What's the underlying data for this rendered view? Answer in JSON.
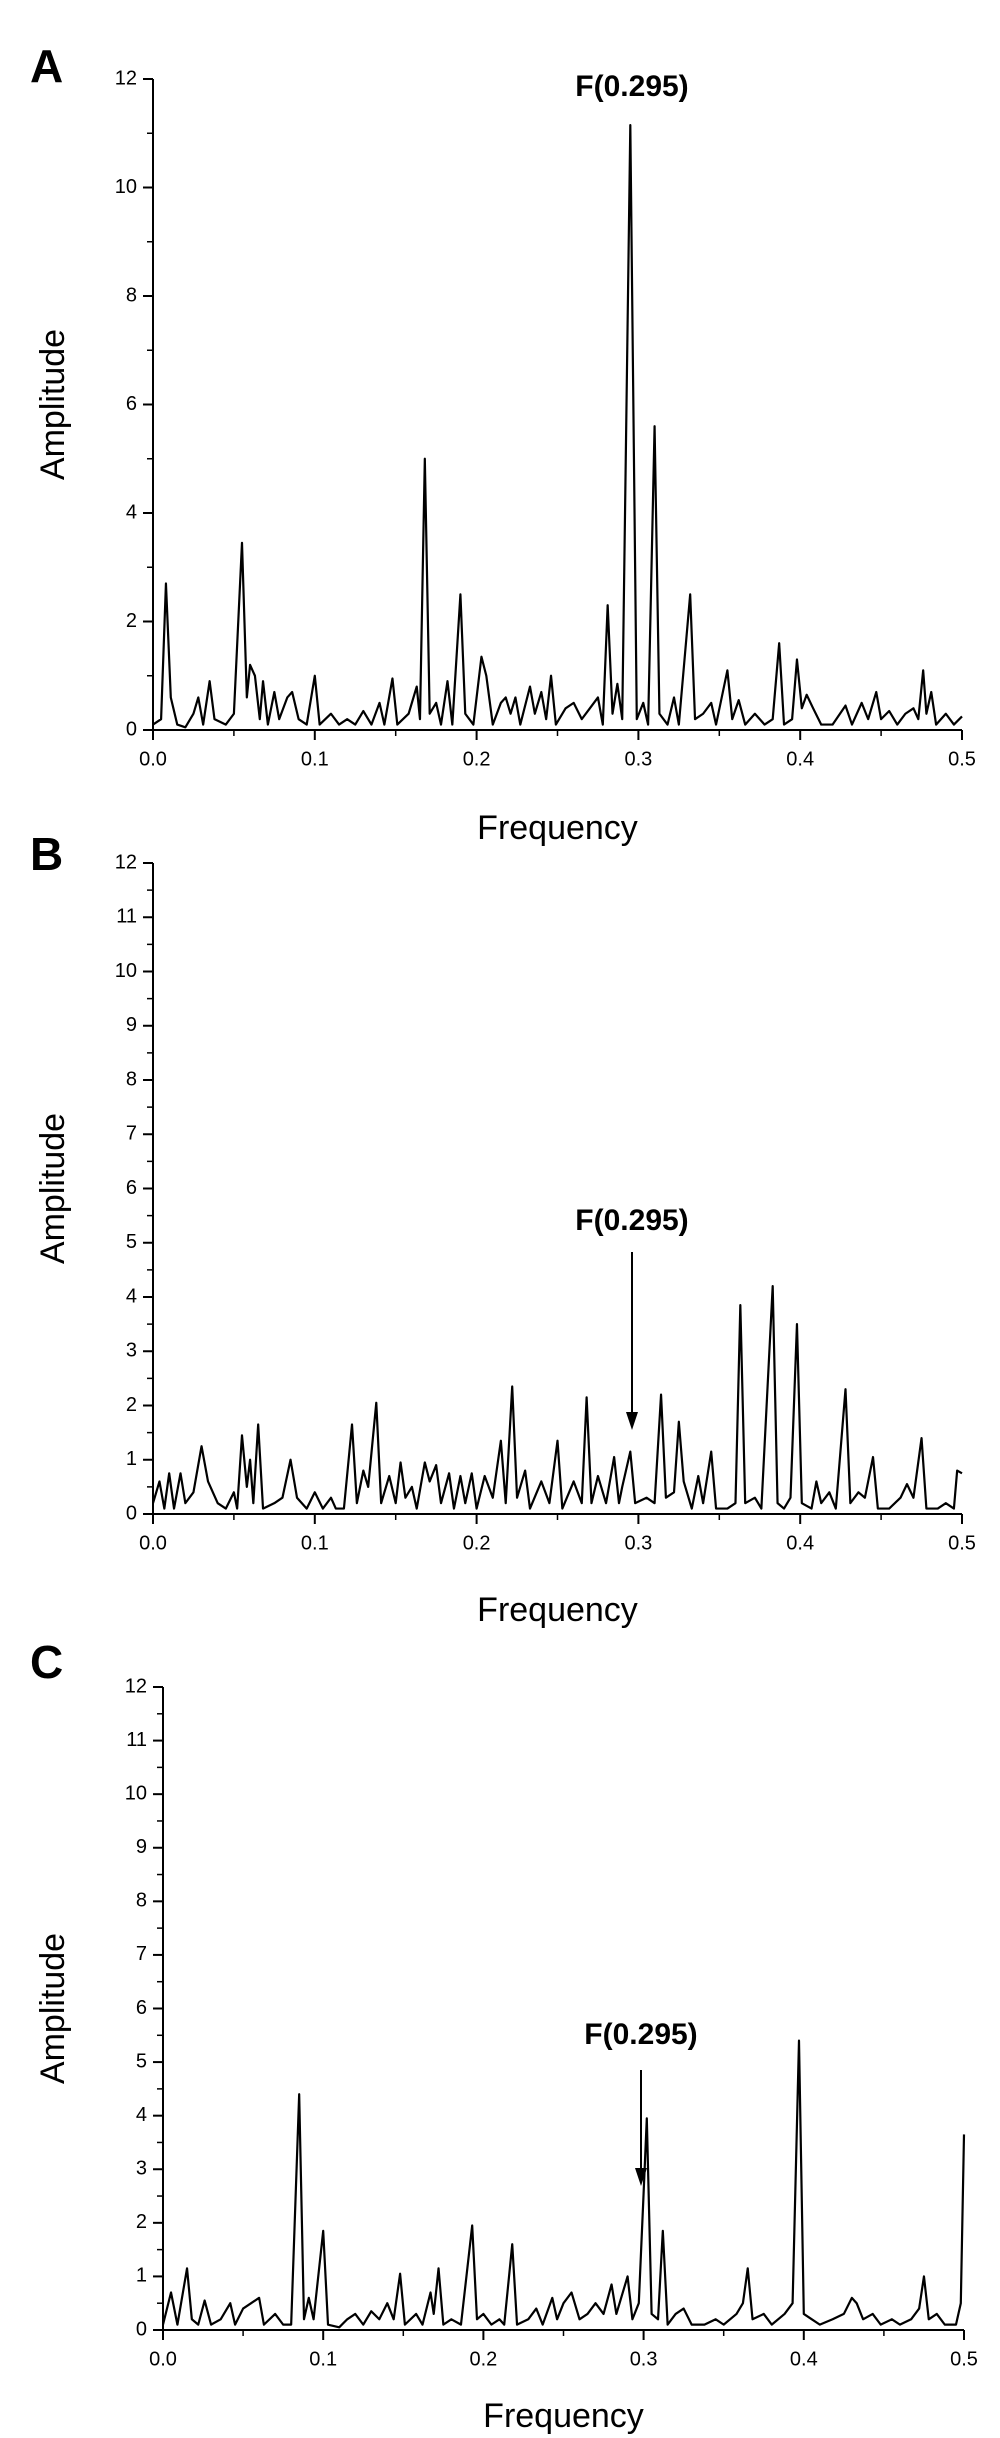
{
  "chart_data": [
    {
      "type": "line",
      "panel_label": "A",
      "annotation": "F(0.295)",
      "x_label": "Frequency",
      "y_label": "Amplitude",
      "color": "#000000",
      "xlim": [
        0,
        0.5
      ],
      "xticks": [
        {
          "value": 0,
          "label": "0.0"
        },
        0.1,
        0.2,
        0.3,
        0.4,
        0.5
      ],
      "ylim": [
        0,
        12
      ],
      "yticks": [
        0,
        2,
        4,
        6,
        8,
        10,
        12
      ],
      "x": [
        0,
        0.005,
        0.008,
        0.011,
        0.015,
        0.02,
        0.025,
        0.028,
        0.031,
        0.035,
        0.038,
        0.045,
        0.05,
        0.055,
        0.058,
        0.06,
        0.063,
        0.066,
        0.068,
        0.071,
        0.075,
        0.078,
        0.083,
        0.086,
        0.09,
        0.095,
        0.1,
        0.103,
        0.11,
        0.115,
        0.12,
        0.125,
        0.13,
        0.135,
        0.14,
        0.143,
        0.148,
        0.151,
        0.158,
        0.163,
        0.165,
        0.168,
        0.171,
        0.175,
        0.178,
        0.182,
        0.185,
        0.19,
        0.193,
        0.198,
        0.203,
        0.206,
        0.21,
        0.215,
        0.218,
        0.221,
        0.224,
        0.227,
        0.233,
        0.236,
        0.24,
        0.243,
        0.246,
        0.249,
        0.255,
        0.26,
        0.265,
        0.27,
        0.275,
        0.278,
        0.281,
        0.284,
        0.287,
        0.29,
        0.295,
        0.299,
        0.303,
        0.306,
        0.31,
        0.313,
        0.318,
        0.322,
        0.325,
        0.332,
        0.335,
        0.34,
        0.345,
        0.348,
        0.355,
        0.358,
        0.362,
        0.366,
        0.372,
        0.378,
        0.383,
        0.387,
        0.39,
        0.395,
        0.398,
        0.401,
        0.404,
        0.408,
        0.413,
        0.42,
        0.428,
        0.432,
        0.438,
        0.442,
        0.447,
        0.45,
        0.455,
        0.46,
        0.465,
        0.47,
        0.473,
        0.476,
        0.478,
        0.481,
        0.484,
        0.49,
        0.495,
        0.5
      ],
      "values": [
        0.1,
        0.2,
        2.7,
        0.6,
        0.1,
        0.05,
        0.3,
        0.6,
        0.1,
        0.9,
        0.2,
        0.1,
        0.3,
        3.45,
        0.6,
        1.2,
        1.0,
        0.2,
        0.9,
        0.1,
        0.7,
        0.2,
        0.6,
        0.7,
        0.2,
        0.1,
        1.0,
        0.1,
        0.3,
        0.1,
        0.2,
        0.1,
        0.35,
        0.1,
        0.5,
        0.1,
        0.95,
        0.1,
        0.3,
        0.8,
        0.2,
        5.0,
        0.3,
        0.5,
        0.1,
        0.9,
        0.1,
        2.5,
        0.3,
        0.1,
        1.35,
        1.0,
        0.1,
        0.5,
        0.6,
        0.3,
        0.6,
        0.1,
        0.8,
        0.3,
        0.7,
        0.2,
        1.0,
        0.1,
        0.4,
        0.5,
        0.2,
        0.4,
        0.6,
        0.1,
        2.3,
        0.3,
        0.85,
        0.2,
        11.15,
        0.2,
        0.5,
        0.1,
        5.6,
        0.3,
        0.1,
        0.6,
        0.1,
        2.5,
        0.2,
        0.3,
        0.5,
        0.1,
        1.1,
        0.2,
        0.55,
        0.1,
        0.3,
        0.1,
        0.2,
        1.6,
        0.1,
        0.2,
        1.3,
        0.4,
        0.65,
        0.4,
        0.1,
        0.1,
        0.45,
        0.1,
        0.5,
        0.2,
        0.7,
        0.2,
        0.35,
        0.1,
        0.3,
        0.4,
        0.2,
        1.1,
        0.3,
        0.7,
        0.1,
        0.3,
        0.1,
        0.25
      ]
    },
    {
      "type": "line",
      "panel_label": "B",
      "annotation": "F(0.295)",
      "x_label": "Frequency",
      "y_label": "Amplitude",
      "color": "#000000",
      "xlim": [
        0,
        0.5
      ],
      "xticks": [
        {
          "value": 0,
          "label": "0.0"
        },
        0.1,
        0.2,
        0.3,
        0.4,
        0.5
      ],
      "ylim": [
        0,
        12
      ],
      "yticks": [
        0,
        1,
        2,
        3,
        4,
        5,
        6,
        7,
        8,
        9,
        10,
        11,
        12
      ],
      "x": [
        0,
        0.004,
        0.007,
        0.01,
        0.013,
        0.017,
        0.02,
        0.025,
        0.03,
        0.034,
        0.04,
        0.045,
        0.05,
        0.052,
        0.055,
        0.058,
        0.06,
        0.062,
        0.065,
        0.068,
        0.075,
        0.08,
        0.085,
        0.089,
        0.095,
        0.1,
        0.105,
        0.11,
        0.113,
        0.118,
        0.123,
        0.126,
        0.13,
        0.133,
        0.138,
        0.141,
        0.146,
        0.15,
        0.153,
        0.156,
        0.16,
        0.163,
        0.168,
        0.171,
        0.175,
        0.178,
        0.183,
        0.186,
        0.19,
        0.193,
        0.197,
        0.2,
        0.205,
        0.21,
        0.215,
        0.218,
        0.222,
        0.225,
        0.23,
        0.233,
        0.24,
        0.245,
        0.25,
        0.253,
        0.26,
        0.265,
        0.268,
        0.271,
        0.275,
        0.28,
        0.285,
        0.288,
        0.29,
        0.295,
        0.298,
        0.305,
        0.31,
        0.314,
        0.317,
        0.322,
        0.325,
        0.328,
        0.333,
        0.337,
        0.34,
        0.345,
        0.348,
        0.355,
        0.36,
        0.363,
        0.366,
        0.372,
        0.376,
        0.383,
        0.386,
        0.39,
        0.394,
        0.398,
        0.401,
        0.407,
        0.41,
        0.413,
        0.418,
        0.422,
        0.428,
        0.431,
        0.436,
        0.44,
        0.445,
        0.448,
        0.455,
        0.462,
        0.466,
        0.47,
        0.475,
        0.478,
        0.485,
        0.49,
        0.495,
        0.497,
        0.5
      ],
      "values": [
        0.2,
        0.6,
        0.1,
        0.75,
        0.1,
        0.75,
        0.2,
        0.4,
        1.25,
        0.6,
        0.2,
        0.1,
        0.4,
        0.1,
        1.45,
        0.5,
        1.0,
        0.2,
        1.65,
        0.1,
        0.2,
        0.3,
        1.0,
        0.3,
        0.1,
        0.4,
        0.1,
        0.3,
        0.1,
        0.1,
        1.65,
        0.2,
        0.8,
        0.5,
        2.05,
        0.2,
        0.7,
        0.2,
        0.95,
        0.3,
        0.5,
        0.1,
        0.95,
        0.6,
        0.9,
        0.2,
        0.75,
        0.1,
        0.7,
        0.2,
        0.75,
        0.1,
        0.7,
        0.3,
        1.35,
        0.2,
        2.35,
        0.3,
        0.8,
        0.1,
        0.6,
        0.2,
        1.35,
        0.1,
        0.6,
        0.2,
        2.15,
        0.2,
        0.7,
        0.2,
        1.05,
        0.2,
        0.5,
        1.15,
        0.2,
        0.3,
        0.2,
        2.2,
        0.3,
        0.4,
        1.7,
        0.6,
        0.1,
        0.7,
        0.2,
        1.15,
        0.1,
        0.1,
        0.2,
        3.85,
        0.2,
        0.3,
        0.1,
        4.2,
        0.2,
        0.1,
        0.3,
        3.5,
        0.2,
        0.1,
        0.6,
        0.2,
        0.4,
        0.1,
        2.3,
        0.2,
        0.4,
        0.3,
        1.05,
        0.1,
        0.1,
        0.3,
        0.55,
        0.3,
        1.4,
        0.1,
        0.1,
        0.2,
        0.1,
        0.8,
        0.75
      ]
    },
    {
      "type": "line",
      "panel_label": "C",
      "annotation": "F(0.295)",
      "x_label": "Frequency",
      "y_label": "Amplitude",
      "color": "#000000",
      "xlim": [
        0,
        0.5
      ],
      "xticks": [
        {
          "value": 0,
          "label": "0.0"
        },
        0.1,
        0.2,
        0.3,
        0.4,
        0.5
      ],
      "ylim": [
        0,
        12
      ],
      "yticks": [
        0,
        1,
        2,
        3,
        4,
        5,
        6,
        7,
        8,
        9,
        10,
        11,
        12
      ],
      "x": [
        0,
        0.005,
        0.009,
        0.015,
        0.018,
        0.022,
        0.026,
        0.03,
        0.036,
        0.042,
        0.045,
        0.05,
        0.055,
        0.06,
        0.063,
        0.07,
        0.075,
        0.08,
        0.085,
        0.088,
        0.091,
        0.094,
        0.1,
        0.103,
        0.11,
        0.115,
        0.12,
        0.125,
        0.13,
        0.135,
        0.14,
        0.144,
        0.148,
        0.151,
        0.158,
        0.162,
        0.167,
        0.169,
        0.172,
        0.175,
        0.18,
        0.186,
        0.193,
        0.196,
        0.2,
        0.205,
        0.21,
        0.213,
        0.218,
        0.221,
        0.228,
        0.233,
        0.237,
        0.243,
        0.246,
        0.25,
        0.255,
        0.26,
        0.265,
        0.27,
        0.275,
        0.28,
        0.283,
        0.29,
        0.293,
        0.297,
        0.3,
        0.302,
        0.305,
        0.309,
        0.312,
        0.315,
        0.32,
        0.325,
        0.33,
        0.338,
        0.345,
        0.35,
        0.358,
        0.362,
        0.365,
        0.368,
        0.375,
        0.38,
        0.388,
        0.393,
        0.397,
        0.4,
        0.405,
        0.41,
        0.418,
        0.425,
        0.43,
        0.433,
        0.437,
        0.443,
        0.448,
        0.455,
        0.46,
        0.467,
        0.472,
        0.475,
        0.478,
        0.483,
        0.488,
        0.495,
        0.498,
        0.5
      ],
      "values": [
        0.1,
        0.7,
        0.1,
        1.15,
        0.2,
        0.1,
        0.55,
        0.1,
        0.2,
        0.5,
        0.1,
        0.4,
        0.5,
        0.6,
        0.1,
        0.3,
        0.1,
        0.1,
        4.4,
        0.2,
        0.6,
        0.2,
        1.85,
        0.1,
        0.05,
        0.2,
        0.3,
        0.1,
        0.35,
        0.2,
        0.5,
        0.2,
        1.05,
        0.1,
        0.3,
        0.1,
        0.7,
        0.3,
        1.15,
        0.1,
        0.2,
        0.1,
        1.95,
        0.2,
        0.3,
        0.1,
        0.2,
        0.1,
        1.6,
        0.1,
        0.2,
        0.4,
        0.1,
        0.6,
        0.2,
        0.5,
        0.7,
        0.2,
        0.3,
        0.5,
        0.3,
        0.85,
        0.3,
        1.0,
        0.2,
        0.5,
        2.55,
        3.95,
        0.3,
        0.2,
        1.85,
        0.1,
        0.3,
        0.4,
        0.1,
        0.1,
        0.2,
        0.1,
        0.3,
        0.5,
        1.15,
        0.2,
        0.3,
        0.1,
        0.3,
        0.5,
        5.4,
        0.3,
        0.2,
        0.1,
        0.2,
        0.3,
        0.6,
        0.5,
        0.2,
        0.3,
        0.1,
        0.2,
        0.1,
        0.2,
        0.4,
        1.0,
        0.2,
        0.3,
        0.1,
        0.1,
        0.5,
        3.65
      ]
    }
  ]
}
